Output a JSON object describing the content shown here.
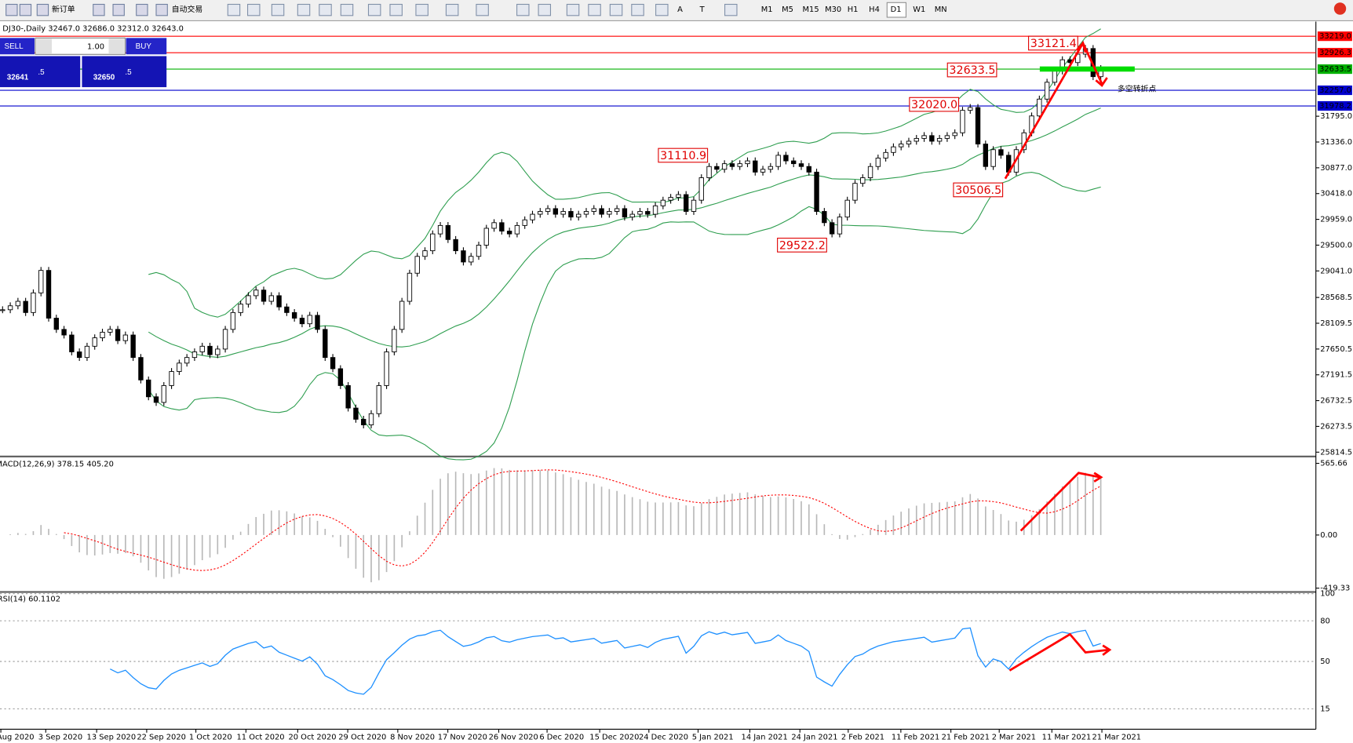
{
  "toolbar": {
    "new_order": "新订单",
    "auto_trading": "自动交易",
    "timeframes": [
      "M1",
      "M5",
      "M15",
      "M30",
      "H1",
      "H4",
      "D1",
      "W1",
      "MN"
    ],
    "text_tools": [
      "A",
      "T"
    ]
  },
  "trade_panel": {
    "sell": "SELL",
    "buy": "BUY",
    "lots": "1.00",
    "bid": {
      "big": "32641",
      "small": ".5"
    },
    "ask": {
      "big": "32650",
      "small": ".5"
    }
  },
  "chart_data": [
    {
      "type": "candlestick",
      "title": "DJ30-,Daily  32467.0 32686.0 32312.0 32643.0",
      "values": [
        28350,
        28420,
        28500,
        28300,
        28650,
        29050,
        28200,
        28000,
        27900,
        27600,
        27500,
        27700,
        27850,
        27950,
        28000,
        27800,
        27900,
        27500,
        27100,
        26800,
        26700,
        27000,
        27250,
        27400,
        27500,
        27600,
        27700,
        27550,
        27650,
        28000,
        28300,
        28450,
        28600,
        28700,
        28500,
        28600,
        28400,
        28300,
        28200,
        28100,
        28250,
        28000,
        27500,
        27300,
        27000,
        26600,
        26400,
        26300,
        26500,
        27000,
        27600,
        28000,
        28500,
        29000,
        29300,
        29400,
        29700,
        29850,
        29600,
        29400,
        29200,
        29300,
        29500,
        29800,
        29900,
        29750,
        29700,
        29850,
        29950,
        30050,
        30100,
        30150,
        30050,
        30100,
        30000,
        30050,
        30100,
        30150,
        30050,
        30100,
        30150,
        30000,
        30050,
        30100,
        30050,
        30200,
        30300,
        30350,
        30400,
        30100,
        30300,
        30700,
        30900,
        30850,
        30950,
        30900,
        30950,
        31000,
        30800,
        30850,
        30900,
        31100,
        31000,
        30950,
        30900,
        30800,
        30100,
        29900,
        29700,
        30000,
        30300,
        30600,
        30700,
        30900,
        31050,
        31150,
        31250,
        31300,
        31350,
        31400,
        31450,
        31350,
        31400,
        31450,
        31500,
        31900,
        31950,
        31300,
        30900,
        31200,
        31100,
        30800,
        31200,
        31500,
        31800,
        32100,
        32400,
        32600,
        32800,
        32750,
        32900,
        33000,
        32500,
        32643
      ],
      "date_labels": [
        "Aug 2020",
        "3 Sep 2020",
        "13 Sep 2020",
        "22 Sep 2020",
        "1 Oct 2020",
        "11 Oct 2020",
        "20 Oct 2020",
        "29 Oct 2020",
        "8 Nov 2020",
        "17 Nov 2020",
        "26 Nov 2020",
        "6 Dec 2020",
        "15 Dec 2020",
        "24 Dec 2020",
        "5 Jan 2021",
        "14 Jan 2021",
        "24 Jan 2021",
        "2 Feb 2021",
        "11 Feb 2021",
        "21 Feb 2021",
        "2 Mar 2021",
        "11 Mar 2021",
        "21 Mar 2021"
      ],
      "ylim": [
        25768,
        33434
      ],
      "yticks": [
        {
          "value": 31795,
          "label": "31795.0"
        },
        {
          "value": 31336,
          "label": "31336.0"
        },
        {
          "value": 30877,
          "label": "30877.0"
        },
        {
          "value": 30418,
          "label": "30418.0"
        },
        {
          "value": 29959,
          "label": "29959.0"
        },
        {
          "value": 29500,
          "label": "29500.0"
        },
        {
          "value": 29041,
          "label": "29041.0"
        },
        28568.5,
        28109.5,
        27650.5,
        27191.5,
        26732.5,
        26273.5,
        25814.5
      ],
      "levels": [
        {
          "value": 33219,
          "label": "33219.0",
          "color": "#ff0000"
        },
        {
          "value": 32926.3,
          "label": "32926.3",
          "color": "#ff0000"
        },
        {
          "value": 32633.5,
          "label": "32633.5",
          "color": "#00b000"
        },
        {
          "value": 32257,
          "label": "32257.0",
          "color": "#0000cd"
        },
        {
          "value": 31978.2,
          "label": "31978.2",
          "color": "#0000cd"
        }
      ],
      "annotations": [
        "33121.4",
        "32633.5",
        "32020.0",
        "31110.9",
        "30506.5",
        "29522.2"
      ],
      "callout": "多空转折点",
      "band_color": "#2e9e4f"
    },
    {
      "type": "macd",
      "title": "MACD(12,26,9) 378.15 405.20",
      "ylim": [
        -436,
        606
      ],
      "yticks": [
        565.66,
        {
          "value": 0,
          "label": "0.00"
        },
        -419.33
      ],
      "color": "#b8b8b8",
      "signal_color": "#ff0000"
    },
    {
      "type": "rsi",
      "title": "RSI(14) 60.1102",
      "ylim": [
        0,
        100
      ],
      "yticks": [
        100,
        80,
        50,
        15
      ],
      "color": "#1e90ff"
    }
  ]
}
